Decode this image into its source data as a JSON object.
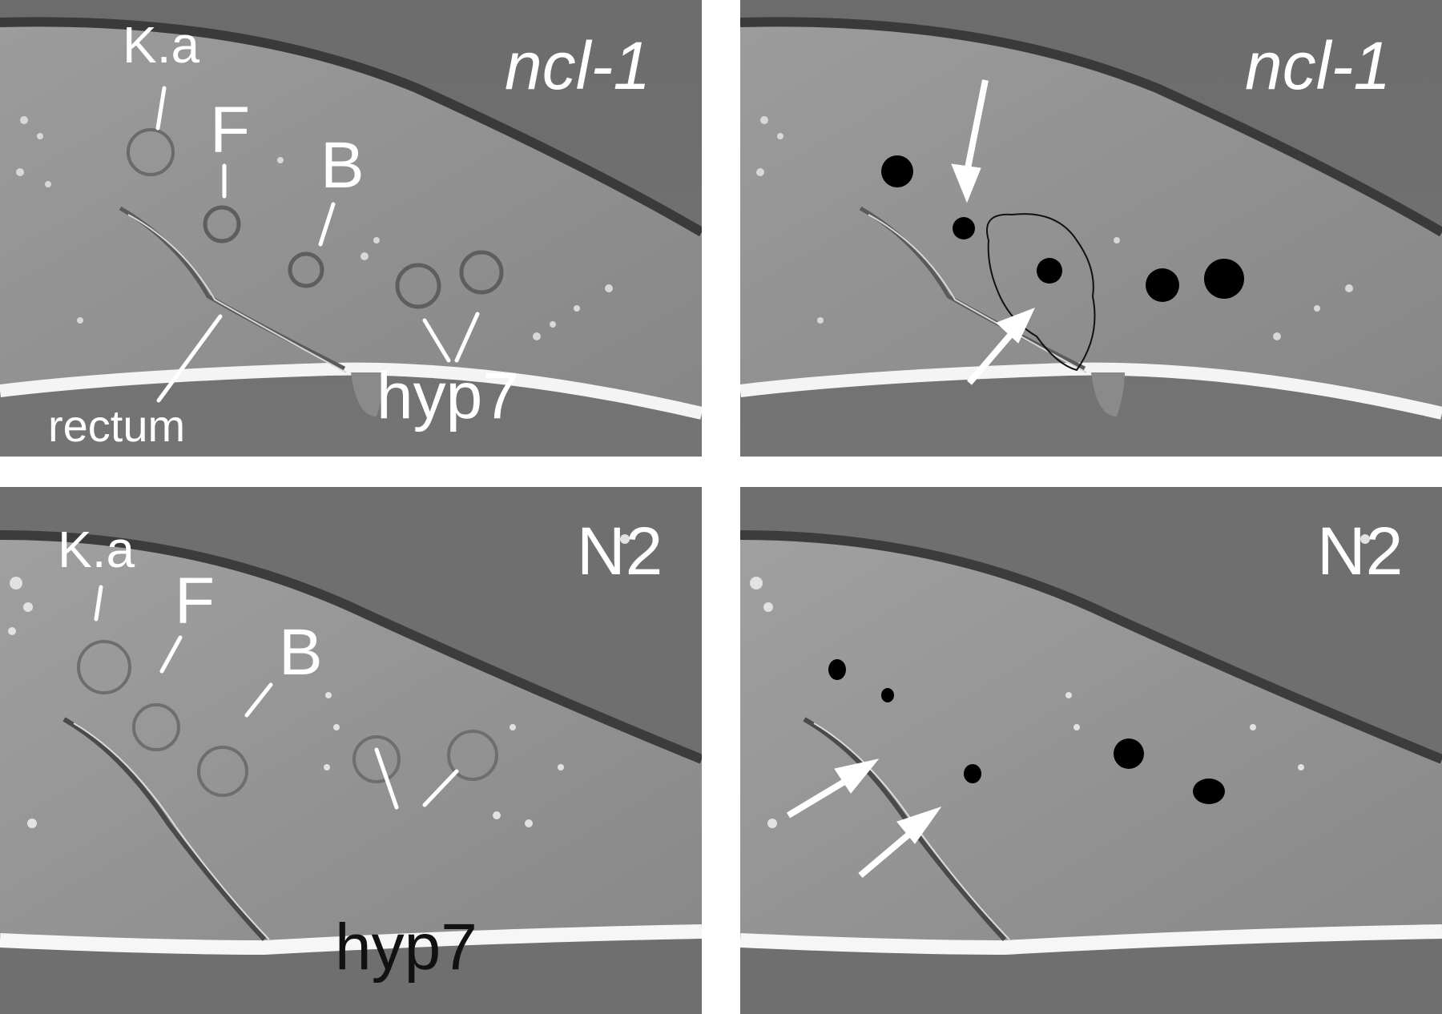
{
  "panels": [
    {
      "strain": "ncl-1",
      "labels": {
        "ka": "K.a",
        "f": "F",
        "b": "B",
        "rectum": "rectum",
        "hyp7": "hyp7"
      }
    },
    {
      "strain": "ncl-1"
    },
    {
      "strain": "N2",
      "labels": {
        "ka": "K.a",
        "f": "F",
        "b": "B",
        "hyp7": "hyp7"
      }
    },
    {
      "strain": "N2"
    }
  ],
  "colors": {
    "background": "#6e6e6e",
    "tissue": "#8f8f8f",
    "cuticle": "#f2f2f2",
    "nucleolus_mark": "#000000",
    "annotation": "#ffffff"
  },
  "marks": {
    "arrow_icon": "arrow-icon",
    "nucleolus_marker": "nucleolus-dot"
  }
}
